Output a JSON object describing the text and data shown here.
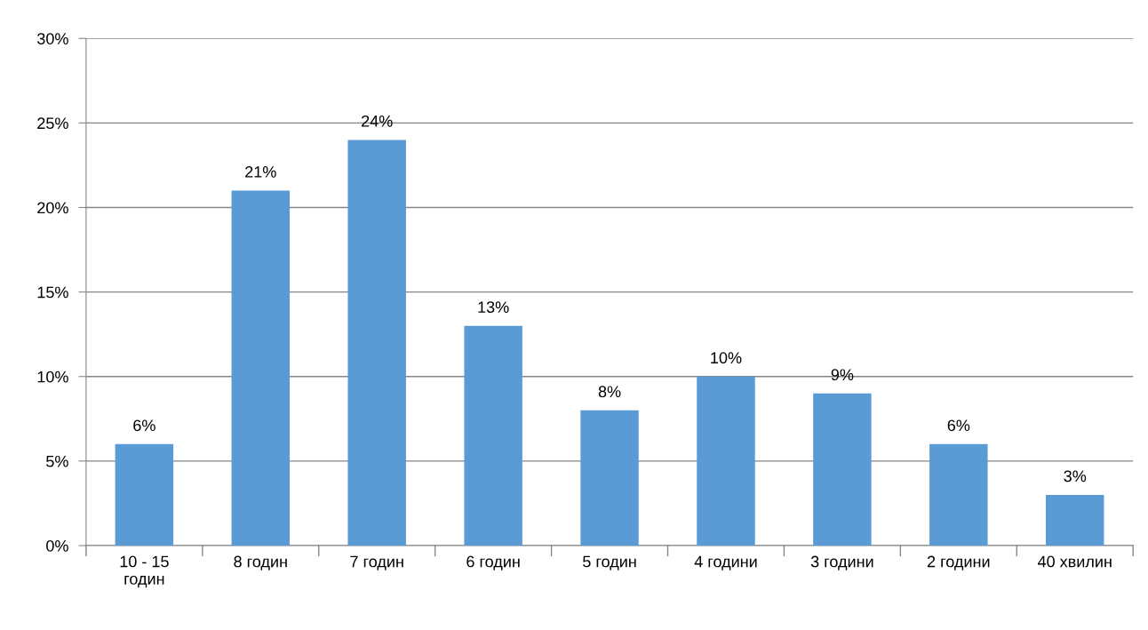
{
  "chart_data": {
    "type": "bar",
    "categories": [
      "10 - 15\nгодин",
      "8 годин",
      "7 годин",
      "6 годин",
      "5 годин",
      "4 години",
      "3 години",
      "2 години",
      "40 хвилин"
    ],
    "values": [
      6,
      21,
      24,
      13,
      8,
      10,
      9,
      6,
      3
    ],
    "value_labels": [
      "6%",
      "21%",
      "24%",
      "13%",
      "8%",
      "10%",
      "9%",
      "6%",
      "3%"
    ],
    "color": "#5b9bd5",
    "ylim": [
      0,
      30
    ],
    "yticks": [
      {
        "value": 0,
        "label": "0%"
      },
      {
        "value": 5,
        "label": "5%"
      },
      {
        "value": 10,
        "label": "10%"
      },
      {
        "value": 15,
        "label": "15%"
      },
      {
        "value": 20,
        "label": "20%"
      },
      {
        "value": 25,
        "label": "25%"
      },
      {
        "value": 30,
        "label": "30%"
      }
    ],
    "grid": "y"
  }
}
